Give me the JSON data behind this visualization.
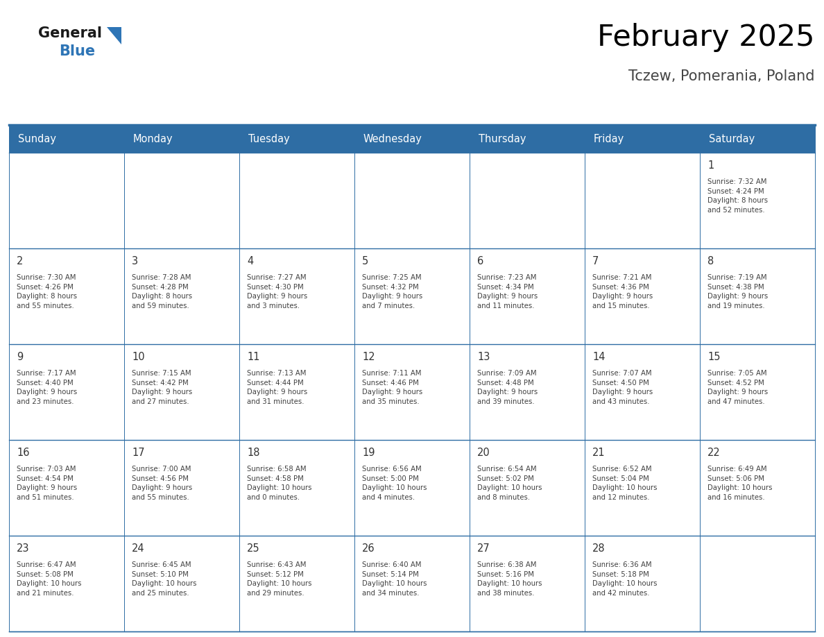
{
  "title": "February 2025",
  "subtitle": "Tczew, Pomerania, Poland",
  "days_of_week": [
    "Sunday",
    "Monday",
    "Tuesday",
    "Wednesday",
    "Thursday",
    "Friday",
    "Saturday"
  ],
  "header_bg": "#2E6DA4",
  "header_text": "#FFFFFF",
  "cell_bg": "#FFFFFF",
  "border_color": "#2E6DA4",
  "grid_line_color": "#2E6DA4",
  "text_color": "#404040",
  "day_number_color": "#333333",
  "logo_general_color": "#1a1a1a",
  "logo_blue_color": "#2E75B6",
  "logo_triangle_color": "#2E75B6",
  "calendar_data": [
    [
      null,
      null,
      null,
      null,
      null,
      null,
      {
        "day": 1,
        "sunrise": "7:32 AM",
        "sunset": "4:24 PM",
        "daylight": "8 hours\nand 52 minutes."
      }
    ],
    [
      {
        "day": 2,
        "sunrise": "7:30 AM",
        "sunset": "4:26 PM",
        "daylight": "8 hours\nand 55 minutes."
      },
      {
        "day": 3,
        "sunrise": "7:28 AM",
        "sunset": "4:28 PM",
        "daylight": "8 hours\nand 59 minutes."
      },
      {
        "day": 4,
        "sunrise": "7:27 AM",
        "sunset": "4:30 PM",
        "daylight": "9 hours\nand 3 minutes."
      },
      {
        "day": 5,
        "sunrise": "7:25 AM",
        "sunset": "4:32 PM",
        "daylight": "9 hours\nand 7 minutes."
      },
      {
        "day": 6,
        "sunrise": "7:23 AM",
        "sunset": "4:34 PM",
        "daylight": "9 hours\nand 11 minutes."
      },
      {
        "day": 7,
        "sunrise": "7:21 AM",
        "sunset": "4:36 PM",
        "daylight": "9 hours\nand 15 minutes."
      },
      {
        "day": 8,
        "sunrise": "7:19 AM",
        "sunset": "4:38 PM",
        "daylight": "9 hours\nand 19 minutes."
      }
    ],
    [
      {
        "day": 9,
        "sunrise": "7:17 AM",
        "sunset": "4:40 PM",
        "daylight": "9 hours\nand 23 minutes."
      },
      {
        "day": 10,
        "sunrise": "7:15 AM",
        "sunset": "4:42 PM",
        "daylight": "9 hours\nand 27 minutes."
      },
      {
        "day": 11,
        "sunrise": "7:13 AM",
        "sunset": "4:44 PM",
        "daylight": "9 hours\nand 31 minutes."
      },
      {
        "day": 12,
        "sunrise": "7:11 AM",
        "sunset": "4:46 PM",
        "daylight": "9 hours\nand 35 minutes."
      },
      {
        "day": 13,
        "sunrise": "7:09 AM",
        "sunset": "4:48 PM",
        "daylight": "9 hours\nand 39 minutes."
      },
      {
        "day": 14,
        "sunrise": "7:07 AM",
        "sunset": "4:50 PM",
        "daylight": "9 hours\nand 43 minutes."
      },
      {
        "day": 15,
        "sunrise": "7:05 AM",
        "sunset": "4:52 PM",
        "daylight": "9 hours\nand 47 minutes."
      }
    ],
    [
      {
        "day": 16,
        "sunrise": "7:03 AM",
        "sunset": "4:54 PM",
        "daylight": "9 hours\nand 51 minutes."
      },
      {
        "day": 17,
        "sunrise": "7:00 AM",
        "sunset": "4:56 PM",
        "daylight": "9 hours\nand 55 minutes."
      },
      {
        "day": 18,
        "sunrise": "6:58 AM",
        "sunset": "4:58 PM",
        "daylight": "10 hours\nand 0 minutes."
      },
      {
        "day": 19,
        "sunrise": "6:56 AM",
        "sunset": "5:00 PM",
        "daylight": "10 hours\nand 4 minutes."
      },
      {
        "day": 20,
        "sunrise": "6:54 AM",
        "sunset": "5:02 PM",
        "daylight": "10 hours\nand 8 minutes."
      },
      {
        "day": 21,
        "sunrise": "6:52 AM",
        "sunset": "5:04 PM",
        "daylight": "10 hours\nand 12 minutes."
      },
      {
        "day": 22,
        "sunrise": "6:49 AM",
        "sunset": "5:06 PM",
        "daylight": "10 hours\nand 16 minutes."
      }
    ],
    [
      {
        "day": 23,
        "sunrise": "6:47 AM",
        "sunset": "5:08 PM",
        "daylight": "10 hours\nand 21 minutes."
      },
      {
        "day": 24,
        "sunrise": "6:45 AM",
        "sunset": "5:10 PM",
        "daylight": "10 hours\nand 25 minutes."
      },
      {
        "day": 25,
        "sunrise": "6:43 AM",
        "sunset": "5:12 PM",
        "daylight": "10 hours\nand 29 minutes."
      },
      {
        "day": 26,
        "sunrise": "6:40 AM",
        "sunset": "5:14 PM",
        "daylight": "10 hours\nand 34 minutes."
      },
      {
        "day": 27,
        "sunrise": "6:38 AM",
        "sunset": "5:16 PM",
        "daylight": "10 hours\nand 38 minutes."
      },
      {
        "day": 28,
        "sunrise": "6:36 AM",
        "sunset": "5:18 PM",
        "daylight": "10 hours\nand 42 minutes."
      },
      null
    ]
  ]
}
